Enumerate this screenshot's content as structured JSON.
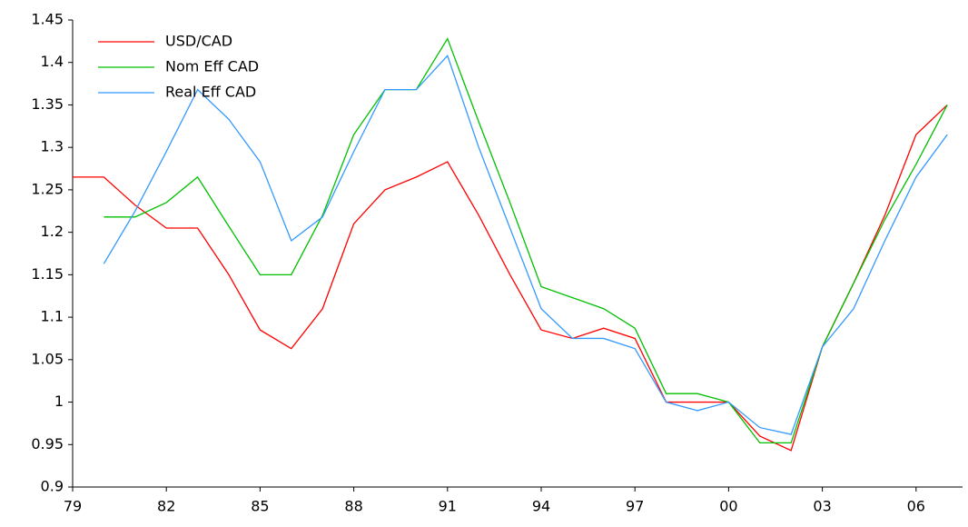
{
  "chart_data": {
    "type": "line",
    "categories": [
      "79",
      null,
      null,
      "82",
      null,
      null,
      "85",
      null,
      null,
      "88",
      null,
      null,
      "91",
      null,
      null,
      "94",
      null,
      null,
      "97",
      null,
      null,
      "00",
      null,
      null,
      "03",
      null,
      null,
      "06",
      null
    ],
    "series": [
      {
        "name": "USD/CAD",
        "color": "#ff0000",
        "values": [
          1.265,
          1.265,
          1.232,
          1.205,
          1.205,
          1.15,
          1.085,
          1.063,
          1.11,
          1.21,
          1.25,
          1.265,
          1.283,
          1.22,
          1.15,
          1.085,
          1.075,
          1.087,
          1.075,
          1.0,
          1.0,
          1.0,
          0.96,
          0.943,
          1.065,
          1.14,
          1.22,
          1.315,
          1.35
        ]
      },
      {
        "name": "Nom Eff CAD",
        "color": "#00c000",
        "values": [
          null,
          1.218,
          1.218,
          1.235,
          1.265,
          1.207,
          1.15,
          1.15,
          1.22,
          1.315,
          1.368,
          1.368,
          1.428,
          1.33,
          1.235,
          1.136,
          1.123,
          1.11,
          1.087,
          1.01,
          1.01,
          1.0,
          0.952,
          0.952,
          1.065,
          1.14,
          1.215,
          1.28,
          1.35
        ]
      },
      {
        "name": "Real Eff CAD",
        "color": "#3399ff",
        "values": [
          null,
          1.163,
          1.225,
          1.295,
          1.368,
          1.333,
          1.283,
          1.19,
          1.218,
          1.295,
          1.368,
          1.368,
          1.408,
          1.3,
          1.205,
          1.11,
          1.075,
          1.075,
          1.063,
          1.0,
          0.99,
          1.0,
          0.97,
          0.962,
          1.065,
          1.11,
          1.19,
          1.265,
          1.315
        ]
      }
    ],
    "ylim": [
      0.9,
      1.45
    ],
    "yticks": [
      0.9,
      0.95,
      1,
      1.05,
      1.1,
      1.15,
      1.2,
      1.25,
      1.3,
      1.35,
      1.4,
      1.45
    ],
    "legend": "top-left"
  }
}
